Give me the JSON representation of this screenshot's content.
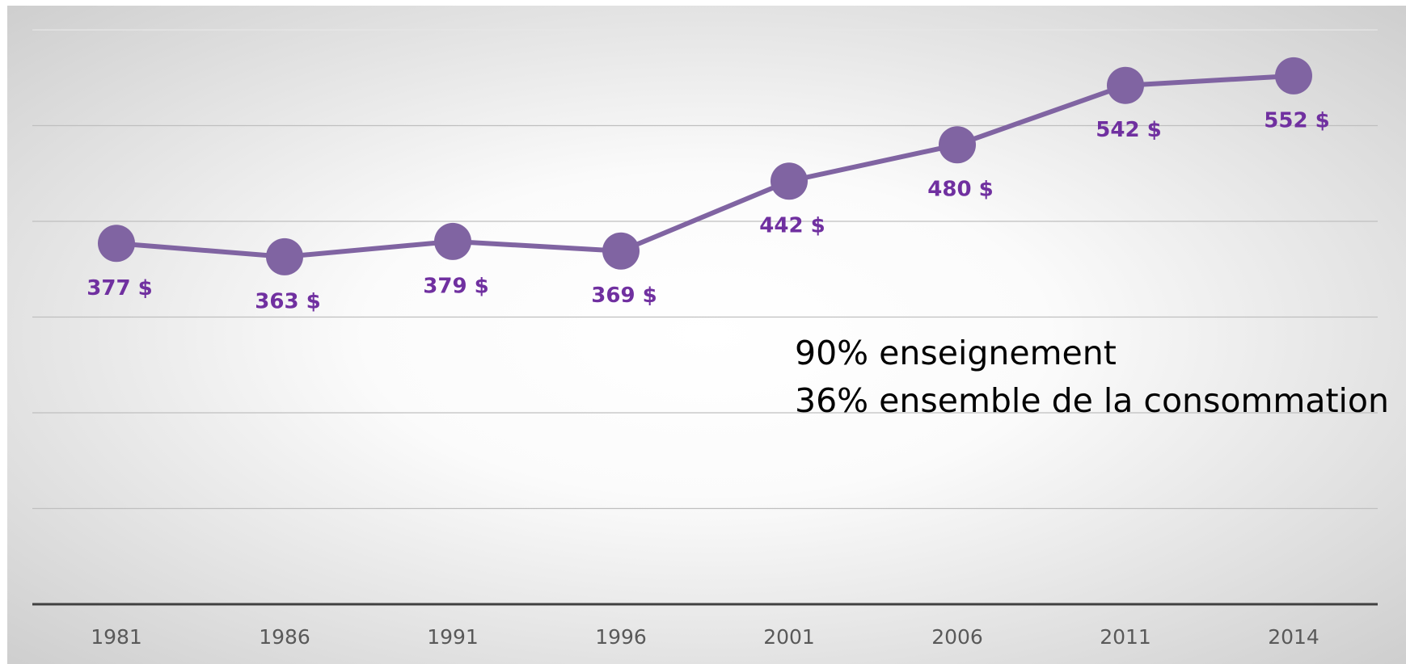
{
  "chart_data": {
    "type": "line",
    "categories": [
      "1981",
      "1986",
      "1991",
      "1996",
      "2001",
      "2006",
      "2011",
      "2014"
    ],
    "series": [
      {
        "color": "#8064a2",
        "values": [
          377,
          363,
          379,
          369,
          442,
          480,
          542,
          552
        ],
        "value_labels": [
          "377 $",
          "363 $",
          "379 $",
          "369 $",
          "442 $",
          "480 $",
          "542 $",
          "552 $"
        ]
      }
    ],
    "ylim": [
      0,
      600
    ],
    "yticks": [
      0,
      100,
      200,
      300,
      400,
      500,
      600
    ],
    "grid": true,
    "annotations": [
      "90% enseignement",
      "36% ensemble de la consommation"
    ]
  }
}
